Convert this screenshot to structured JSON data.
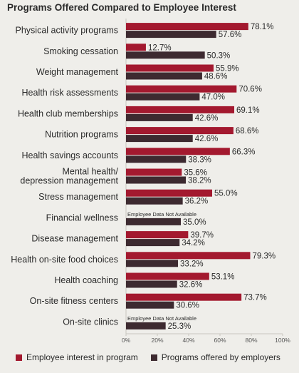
{
  "chart_data": {
    "type": "bar",
    "orientation": "horizontal",
    "title": "Programs Offered Compared to Employee Interest",
    "categories": [
      "Physical activity programs",
      "Smoking cessation",
      "Weight management",
      "Health risk assessments",
      "Health club memberships",
      "Nutrition programs",
      "Health savings accounts",
      "Mental health/\ndepression management",
      "Stress management",
      "Financial wellness",
      "Disease management",
      "Health on-site food choices",
      "Health coaching",
      "On-site fitness centers",
      "On-site clinics"
    ],
    "series": [
      {
        "name": "Employee interest in program",
        "color": "#a3192f",
        "values": [
          78.1,
          12.7,
          55.9,
          70.6,
          69.1,
          68.6,
          66.3,
          35.6,
          55.0,
          null,
          39.7,
          79.3,
          53.1,
          73.7,
          null
        ],
        "labels": [
          "78.1%",
          "12.7%",
          "55.9%",
          "70.6%",
          "69.1%",
          "68.6%",
          "66.3%",
          "35.6%",
          "55.0%",
          "",
          "39.7%",
          "79.3%",
          "53.1%",
          "73.7%",
          ""
        ]
      },
      {
        "name": "Programs offered by employers",
        "color": "#3d2a30",
        "values": [
          57.6,
          50.3,
          48.6,
          47.0,
          42.6,
          42.6,
          38.3,
          38.2,
          36.2,
          35.0,
          34.2,
          33.2,
          32.6,
          30.6,
          25.3
        ],
        "labels": [
          "57.6%",
          "50.3%",
          "48.6%",
          "47.0%",
          "42.6%",
          "42.6%",
          "38.3%",
          "38.2%",
          "36.2%",
          "35.0%",
          "34.2%",
          "33.2%",
          "32.6%",
          "30.6%",
          "25.3%"
        ]
      }
    ],
    "not_available_text": "Employee Data Not Available",
    "xlim": [
      0,
      100
    ],
    "xticks": [
      "0%",
      "20%",
      "40%",
      "60%",
      "80%",
      "100%"
    ],
    "legend_position": "bottom"
  }
}
